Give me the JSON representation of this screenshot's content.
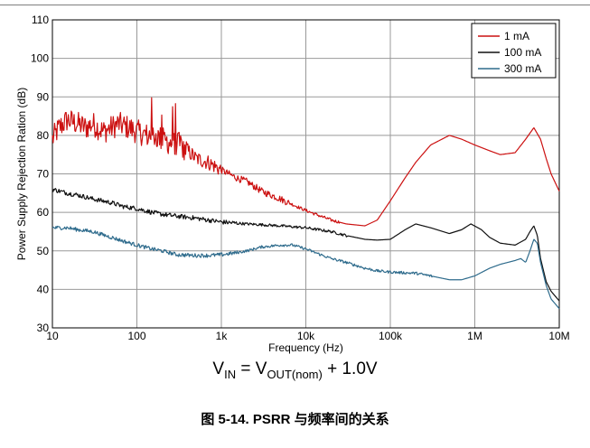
{
  "chart_data": {
    "type": "line",
    "title": "",
    "xlabel": "Frequency (Hz)",
    "ylabel": "Power Supply Rejection Ration (dB)",
    "xscale": "log",
    "xlim": [
      10,
      10000000
    ],
    "ylim": [
      30,
      110
    ],
    "grid": true,
    "legend_position": "top-right",
    "x_tick_labels": [
      "10",
      "100",
      "1k",
      "10k",
      "100k",
      "1M",
      "10M"
    ],
    "y_tick_labels": [
      "30",
      "40",
      "50",
      "60",
      "70",
      "80",
      "90",
      "100",
      "110"
    ],
    "series": [
      {
        "name": "1 mA",
        "color": "#cc1111",
        "x": [
          10,
          12,
          15,
          20,
          25,
          30,
          40,
          50,
          60,
          80,
          100,
          130,
          160,
          200,
          250,
          300,
          400,
          500,
          700,
          1000,
          1500,
          2000,
          3000,
          5000,
          7000,
          10000,
          15000,
          20000,
          30000,
          50000,
          70000,
          100000,
          150000,
          200000,
          300000,
          500000,
          700000,
          1000000,
          1500000,
          2000000,
          3000000,
          4000000,
          5000000,
          6000000,
          7000000,
          8000000,
          10000000
        ],
        "y": [
          79,
          82,
          84,
          83,
          82,
          83,
          81,
          82,
          83,
          82,
          81,
          80,
          80,
          79,
          78,
          78,
          76,
          74,
          73,
          71,
          69,
          68,
          65.5,
          63.5,
          62,
          60.5,
          59,
          58,
          57,
          56.5,
          58,
          63,
          69,
          73,
          77.5,
          80,
          79,
          77.5,
          76,
          75,
          75.5,
          79,
          82,
          79,
          74,
          70,
          65.5
        ]
      },
      {
        "name": "100 mA",
        "color": "#111111",
        "x": [
          10,
          15,
          20,
          30,
          50,
          70,
          100,
          150,
          200,
          300,
          500,
          700,
          1000,
          2000,
          3000,
          5000,
          10000,
          20000,
          30000,
          50000,
          70000,
          100000,
          150000,
          200000,
          300000,
          500000,
          700000,
          900000,
          1200000,
          1500000,
          2000000,
          3000000,
          4000000,
          4500000,
          5000000,
          5500000,
          6000000,
          7000000,
          8000000,
          10000000
        ],
        "y": [
          66,
          65,
          64.5,
          63.5,
          62.5,
          61.5,
          61,
          60,
          59.5,
          59,
          58.5,
          58,
          57.5,
          57,
          56.8,
          56.5,
          56,
          55,
          54,
          53,
          52.8,
          53,
          55.5,
          57,
          56,
          54.5,
          55.5,
          57,
          55.5,
          53.5,
          52,
          51.5,
          53,
          55,
          56.5,
          54,
          48,
          42,
          39.5,
          37
        ]
      },
      {
        "name": "300 mA",
        "color": "#2e6b8c",
        "x": [
          10,
          15,
          20,
          30,
          50,
          70,
          100,
          150,
          200,
          300,
          500,
          700,
          1000,
          1500,
          2000,
          3000,
          5000,
          7000,
          10000,
          15000,
          20000,
          30000,
          50000,
          70000,
          100000,
          150000,
          200000,
          300000,
          500000,
          700000,
          1000000,
          1500000,
          2000000,
          3000000,
          3500000,
          4000000,
          4500000,
          5000000,
          5500000,
          6000000,
          7000000,
          8000000,
          10000000
        ],
        "y": [
          56,
          56,
          55.5,
          55,
          53.5,
          52.5,
          51.5,
          50.5,
          50,
          49,
          48.8,
          48.8,
          49,
          49.5,
          50,
          51,
          51.5,
          51.5,
          50.5,
          49,
          48,
          47,
          45.5,
          44.8,
          44.5,
          44.3,
          44.2,
          43.5,
          42.5,
          42.5,
          43.5,
          45.5,
          46.5,
          47.5,
          48,
          47,
          50,
          53,
          52,
          47,
          41,
          37.5,
          35
        ]
      }
    ]
  },
  "condition": {
    "v_in": "V",
    "v_in_sub": "IN",
    "equals": " = V",
    "v_out_sub": "OUT(nom)",
    "rest": " + 1.0V"
  },
  "caption": "图 5-14. PSRR 与频率间的关系"
}
